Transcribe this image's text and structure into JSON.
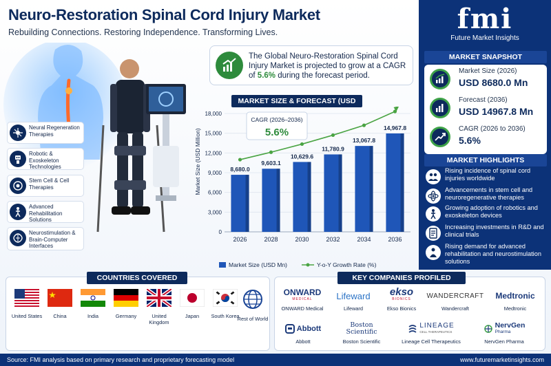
{
  "header": {
    "title": "Neuro-Restoration Spinal Cord Injury Market",
    "subtitle": "Rebuilding Connections. Restoring Independence. Transforming Lives."
  },
  "logo": {
    "mark": "fmi",
    "name": "Future Market Insights"
  },
  "callout": {
    "text_before": "The Global Neuro-Restoration Spinal Cord Injury Market is projected to grow at a CAGR of ",
    "highlight": "5.6%",
    "text_after": " during the forecast period.",
    "icon": "growth-chart-icon"
  },
  "technologies": [
    {
      "label": "Neural Regeneration Therapies",
      "icon": "neuron-icon"
    },
    {
      "label": "Robotic & Exoskeleton Technologies",
      "icon": "robot-icon"
    },
    {
      "label": "Stem Cell & Cell Therapies",
      "icon": "cell-icon"
    },
    {
      "label": "Advanced Rehabilitation Solutions",
      "icon": "rehab-icon"
    },
    {
      "label": "Neurostimulation & Brain-Computer Interfaces",
      "icon": "brain-icon"
    }
  ],
  "snapshot": {
    "title": "MARKET SNAPSHOT",
    "items": [
      {
        "label": "Market Size (2026)",
        "value": "USD 8680.0 Mn",
        "icon": "growth-chart-icon"
      },
      {
        "label": "Forecast (2036)",
        "value": "USD 14967.8 Mn",
        "icon": "bar-chart-icon"
      },
      {
        "label": "CAGR (2026 to 2036)",
        "value": "5.6%",
        "icon": "trend-icon"
      }
    ]
  },
  "highlights": {
    "title": "MARKET HIGHLIGHTS",
    "items": [
      {
        "text": "Rising incidence of spinal cord injuries worldwide",
        "icon": "people-icon"
      },
      {
        "text": "Advancements in stem cell and neuroregenerative therapies",
        "icon": "atom-icon"
      },
      {
        "text": "Growing adoption of robotics and exoskeleton devices",
        "icon": "exoskeleton-icon"
      },
      {
        "text": "Increasing investments in R&D and clinical trials",
        "icon": "document-icon"
      },
      {
        "text": "Rising demand for advanced rehabilitation and neurostimulation solutions",
        "icon": "person-icon"
      }
    ]
  },
  "chart_data": {
    "type": "bar",
    "title": "MARKET SIZE & FORECAST (USD MN)",
    "categories": [
      "2026",
      "2028",
      "2030",
      "2032",
      "2034",
      "2036"
    ],
    "series": [
      {
        "name": "Market Size (USD Mn)",
        "values": [
          8680.0,
          9603.1,
          10629.6,
          11780.9,
          13067.8,
          14967.8
        ],
        "labels": [
          "8,680.0",
          "9,603.1",
          "10,629.6",
          "11,780.9",
          "13,067.8",
          "14,967.8"
        ]
      }
    ],
    "line_legend": "Y-o-Y Growth Rate (%)",
    "ylabel": "Market Size (USD Million)",
    "ylim": [
      0,
      18000
    ],
    "yticks": [
      "0",
      "3,000",
      "6,000",
      "9,000",
      "12,000",
      "15,000",
      "18,000"
    ],
    "ytick_values": [
      0,
      3000,
      6000,
      9000,
      12000,
      15000,
      18000
    ],
    "cagr_label": "CAGR (2026–2036)",
    "cagr_value": "5.6%",
    "colors": {
      "bar": "#1f56b8",
      "bar_dark": "#0d2a5c",
      "line": "#4aa443"
    }
  },
  "countries": {
    "title": "COUNTRIES COVERED",
    "items": [
      {
        "name": "United States",
        "flag": "us-flag-icon"
      },
      {
        "name": "China",
        "flag": "china-flag-icon"
      },
      {
        "name": "India",
        "flag": "india-flag-icon"
      },
      {
        "name": "Germany",
        "flag": "germany-flag-icon"
      },
      {
        "name": "United Kingdom",
        "flag": "uk-flag-icon"
      },
      {
        "name": "Japan",
        "flag": "japan-flag-icon"
      },
      {
        "name": "South Korea",
        "flag": "south-korea-flag-icon"
      },
      {
        "name": "Rest of World",
        "flag": "globe-icon"
      }
    ]
  },
  "companies": {
    "title": "KEY COMPANIES PROFILED",
    "items": [
      {
        "logo": "ONWARD",
        "logo_sub": "MEDICAL",
        "name": "ONWARD Medical"
      },
      {
        "logo": "Lifeward",
        "logo_sub": "",
        "name": "Lifeward"
      },
      {
        "logo": "ekso",
        "logo_sub": "BIONICS",
        "name": "Ekso Bionics"
      },
      {
        "logo": "WANDERCRAFT",
        "logo_sub": "",
        "name": "Wandercraft"
      },
      {
        "logo": "Medtronic",
        "logo_sub": "",
        "name": "Medtronic"
      },
      {
        "logo": "Abbott",
        "logo_sub": "",
        "name": "Abbott"
      },
      {
        "logo": "Boston Scientific",
        "logo_sub": "",
        "name": "Boston Scientific"
      },
      {
        "logo": "LINEAGE",
        "logo_sub": "CELL THERAPEUTICS",
        "name": "Lineage Cell Therapeutics"
      },
      {
        "logo": "NervGen",
        "logo_sub": "Pharma",
        "name": "NervGen Pharma"
      }
    ]
  },
  "footer": {
    "source": "Source: FMI analysis based on primary research and proprietary forecasting model",
    "url": "www.futuremarketinsights.com"
  }
}
